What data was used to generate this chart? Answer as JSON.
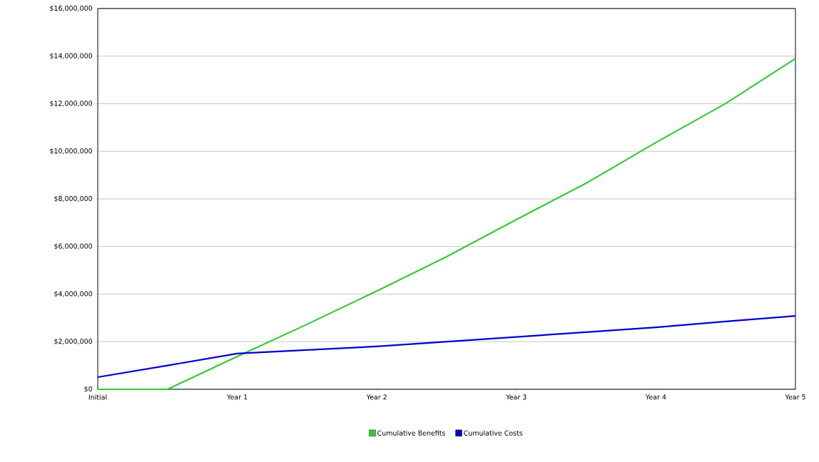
{
  "chart_data": {
    "type": "line",
    "categories": [
      "Initial",
      null,
      "Year 1",
      null,
      "Year 2",
      null,
      "Year 3",
      null,
      "Year 4",
      null,
      "Year 5"
    ],
    "series": [
      {
        "name": "Cumulative Benefits",
        "color": "#33cc33",
        "values": [
          0,
          0,
          1380000,
          2730000,
          4130000,
          5570000,
          7130000,
          8660000,
          10370000,
          12010000,
          13900000
        ]
      },
      {
        "name": "Cumulative Costs",
        "color": "#0000cc",
        "values": [
          510000,
          1000000,
          1500000,
          1650000,
          1800000,
          2000000,
          2200000,
          2400000,
          2600000,
          2850000,
          3080000
        ]
      }
    ],
    "ylim": [
      0,
      16000000
    ],
    "yticks": [
      {
        "value": 0,
        "label": "$0"
      },
      {
        "value": 2000000,
        "label": "$2,000,000"
      },
      {
        "value": 4000000,
        "label": "$4,000,000"
      },
      {
        "value": 6000000,
        "label": "$6,000,000"
      },
      {
        "value": 8000000,
        "label": "$8,000,000"
      },
      {
        "value": 10000000,
        "label": "$10,000,000"
      },
      {
        "value": 12000000,
        "label": "$12,000,000"
      },
      {
        "value": 14000000,
        "label": "$14,000,000"
      },
      {
        "value": 16000000,
        "label": "$16,000,000"
      }
    ],
    "grid": "y",
    "legend": "bottom",
    "marker": "none",
    "line_style": "solid"
  }
}
